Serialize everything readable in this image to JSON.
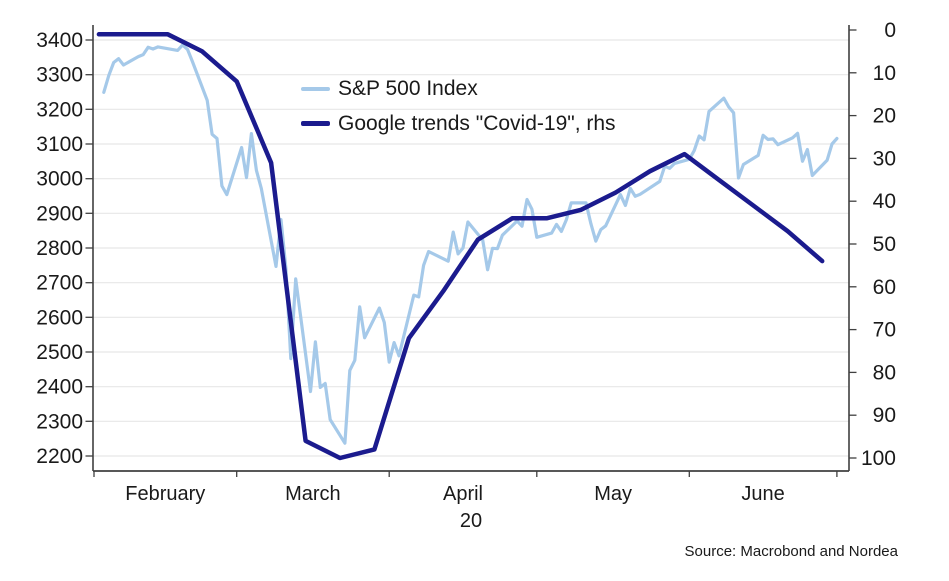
{
  "source_note": "Source: Macrobond and Nordea",
  "chart_data": {
    "type": "line",
    "title": "",
    "legend_position": "top-left-inside",
    "x_axis": {
      "unit": "days from 2020-02-01",
      "month_labels": [
        "February",
        "March",
        "April",
        "May",
        "June"
      ],
      "month_boundary_days": [
        0,
        29,
        60,
        90,
        121,
        151
      ],
      "year_label": "20"
    },
    "left_axis": {
      "min": 2200,
      "max": 3400,
      "step": 100,
      "ticks": [
        3400,
        3300,
        3200,
        3100,
        3000,
        2900,
        2800,
        2700,
        2600,
        2500,
        2400,
        2300,
        2200
      ],
      "grid": true
    },
    "right_axis": {
      "min": 0,
      "max": 100,
      "step": 10,
      "inverted": true,
      "ticks": [
        0,
        10,
        20,
        30,
        40,
        50,
        60,
        70,
        80,
        90,
        100
      ],
      "grid": false
    },
    "series": [
      {
        "name": "S&P 500 Index",
        "axis": "left",
        "color": "#a5c9e9",
        "line_width": 3.2,
        "points": [
          [
            2,
            3249
          ],
          [
            3,
            3298
          ],
          [
            4,
            3335
          ],
          [
            5,
            3346
          ],
          [
            6,
            3328
          ],
          [
            9,
            3352
          ],
          [
            10,
            3358
          ],
          [
            11,
            3379
          ],
          [
            12,
            3374
          ],
          [
            13,
            3380
          ],
          [
            17,
            3370
          ],
          [
            18,
            3386
          ],
          [
            19,
            3373
          ],
          [
            20,
            3338
          ],
          [
            23,
            3226
          ],
          [
            24,
            3128
          ],
          [
            25,
            3116
          ],
          [
            26,
            2979
          ],
          [
            27,
            2954
          ],
          [
            30,
            3090
          ],
          [
            31,
            3003
          ],
          [
            32,
            3130
          ],
          [
            33,
            3024
          ],
          [
            34,
            2972
          ],
          [
            37,
            2747
          ],
          [
            38,
            2882
          ],
          [
            39,
            2741
          ],
          [
            40,
            2481
          ],
          [
            41,
            2711
          ],
          [
            44,
            2386
          ],
          [
            45,
            2529
          ],
          [
            46,
            2398
          ],
          [
            47,
            2409
          ],
          [
            48,
            2305
          ],
          [
            51,
            2237
          ],
          [
            52,
            2447
          ],
          [
            53,
            2476
          ],
          [
            54,
            2630
          ],
          [
            55,
            2541
          ],
          [
            58,
            2627
          ],
          [
            59,
            2585
          ],
          [
            60,
            2471
          ],
          [
            61,
            2527
          ],
          [
            62,
            2489
          ],
          [
            65,
            2664
          ],
          [
            66,
            2659
          ],
          [
            67,
            2750
          ],
          [
            68,
            2790
          ],
          [
            72,
            2762
          ],
          [
            73,
            2846
          ],
          [
            74,
            2783
          ],
          [
            75,
            2800
          ],
          [
            76,
            2875
          ],
          [
            79,
            2823
          ],
          [
            80,
            2737
          ],
          [
            81,
            2799
          ],
          [
            82,
            2798
          ],
          [
            83,
            2837
          ],
          [
            86,
            2878
          ],
          [
            87,
            2863
          ],
          [
            88,
            2940
          ],
          [
            89,
            2912
          ],
          [
            90,
            2831
          ],
          [
            93,
            2843
          ],
          [
            94,
            2868
          ],
          [
            95,
            2848
          ],
          [
            96,
            2881
          ],
          [
            97,
            2930
          ],
          [
            100,
            2930
          ],
          [
            101,
            2870
          ],
          [
            102,
            2820
          ],
          [
            103,
            2853
          ],
          [
            104,
            2864
          ],
          [
            107,
            2954
          ],
          [
            108,
            2923
          ],
          [
            109,
            2972
          ],
          [
            110,
            2949
          ],
          [
            111,
            2955
          ],
          [
            115,
            2992
          ],
          [
            116,
            3036
          ],
          [
            117,
            3030
          ],
          [
            118,
            3044
          ],
          [
            121,
            3056
          ],
          [
            122,
            3081
          ],
          [
            123,
            3123
          ],
          [
            124,
            3112
          ],
          [
            125,
            3194
          ],
          [
            128,
            3232
          ],
          [
            129,
            3207
          ],
          [
            130,
            3190
          ],
          [
            131,
            3002
          ],
          [
            132,
            3041
          ],
          [
            135,
            3067
          ],
          [
            136,
            3125
          ],
          [
            137,
            3113
          ],
          [
            138,
            3115
          ],
          [
            139,
            3098
          ],
          [
            142,
            3118
          ],
          [
            143,
            3131
          ],
          [
            144,
            3050
          ],
          [
            145,
            3084
          ],
          [
            146,
            3009
          ],
          [
            149,
            3053
          ],
          [
            150,
            3100
          ],
          [
            151,
            3116
          ]
        ]
      },
      {
        "name": "Google trends \"Covid-19\", rhs",
        "axis": "right",
        "color": "#1b1b8e",
        "line_width": 4.5,
        "points": [
          [
            1,
            1
          ],
          [
            8,
            1
          ],
          [
            15,
            1
          ],
          [
            22,
            5
          ],
          [
            29,
            12
          ],
          [
            36,
            31
          ],
          [
            43,
            96
          ],
          [
            50,
            100
          ],
          [
            57,
            98
          ],
          [
            64,
            72
          ],
          [
            71,
            61
          ],
          [
            78,
            49
          ],
          [
            85,
            44
          ],
          [
            92,
            44
          ],
          [
            99,
            42
          ],
          [
            106,
            38
          ],
          [
            113,
            33
          ],
          [
            120,
            29
          ],
          [
            127,
            35
          ],
          [
            134,
            41
          ],
          [
            141,
            47
          ],
          [
            148,
            54
          ]
        ]
      }
    ]
  },
  "colors": {
    "grid": "#e7e7e7",
    "axis": "#404040",
    "text": "#1a1a1a"
  }
}
